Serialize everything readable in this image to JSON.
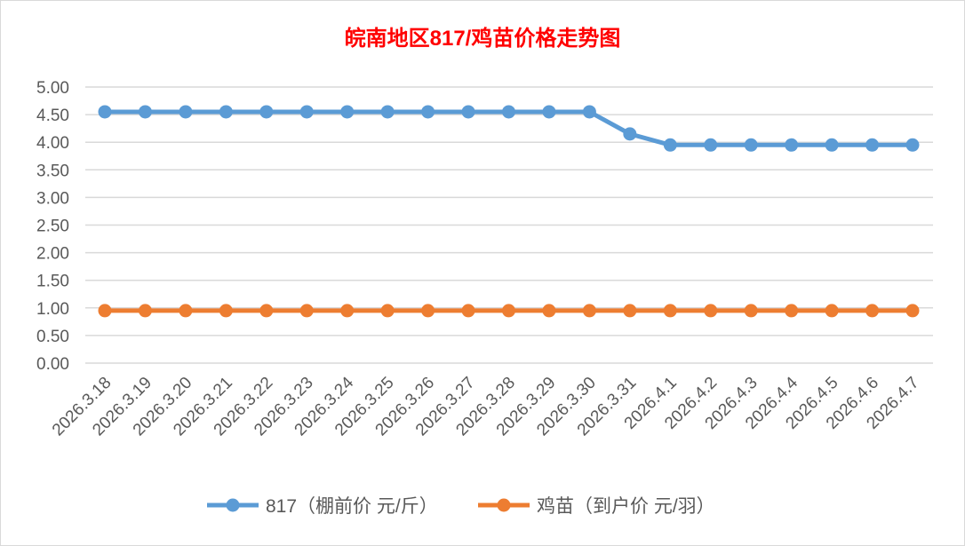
{
  "chart_data": {
    "type": "line",
    "title": "皖南地区817/鸡苗价格走势图",
    "title_color": "#ff0000",
    "xlabel": "",
    "ylabel": "",
    "ylim": [
      0,
      5
    ],
    "yticks": [
      "0.00",
      "0.50",
      "1.00",
      "1.50",
      "2.00",
      "2.50",
      "3.00",
      "3.50",
      "4.00",
      "4.50",
      "5.00"
    ],
    "grid": true,
    "legend_position": "bottom",
    "categories": [
      "2026.3.18",
      "2026.3.19",
      "2026.3.20",
      "2026.3.21",
      "2026.3.22",
      "2026.3.23",
      "2026.3.24",
      "2026.3.25",
      "2026.3.26",
      "2026.3.27",
      "2026.3.28",
      "2026.3.29",
      "2026.3.30",
      "2026.3.31",
      "2026.4.1",
      "2026.4.2",
      "2026.4.3",
      "2026.4.4",
      "2026.4.5",
      "2026.4.6",
      "2026.4.7"
    ],
    "series": [
      {
        "name": "817（棚前价 元/斤）",
        "color": "#5b9bd5",
        "values": [
          4.55,
          4.55,
          4.55,
          4.55,
          4.55,
          4.55,
          4.55,
          4.55,
          4.55,
          4.55,
          4.55,
          4.55,
          4.55,
          4.15,
          3.95,
          3.95,
          3.95,
          3.95,
          3.95,
          3.95,
          3.95
        ]
      },
      {
        "name": "鸡苗（到户价 元/羽）",
        "color": "#ed7d31",
        "values": [
          0.95,
          0.95,
          0.95,
          0.95,
          0.95,
          0.95,
          0.95,
          0.95,
          0.95,
          0.95,
          0.95,
          0.95,
          0.95,
          0.95,
          0.95,
          0.95,
          0.95,
          0.95,
          0.95,
          0.95,
          0.95
        ]
      }
    ]
  }
}
